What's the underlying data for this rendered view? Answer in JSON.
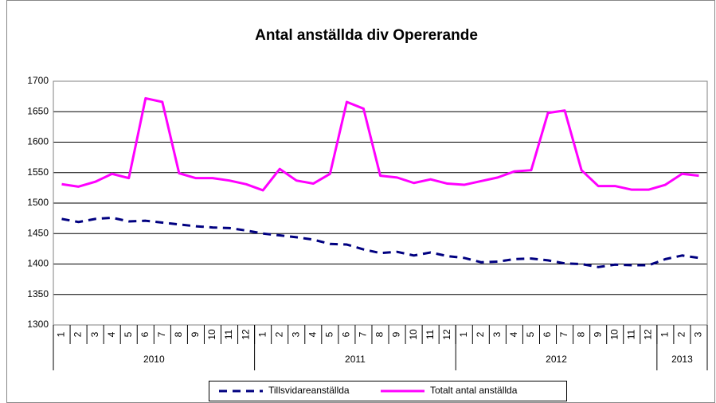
{
  "chart_data": {
    "type": "line",
    "title": "Antal anställda div Opererande",
    "categories": [
      "1",
      "2",
      "3",
      "4",
      "5",
      "6",
      "7",
      "8",
      "9",
      "10",
      "11",
      "12",
      "1",
      "2",
      "3",
      "4",
      "5",
      "6",
      "7",
      "8",
      "9",
      "10",
      "11",
      "12",
      "1",
      "2",
      "3",
      "4",
      "5",
      "6",
      "7",
      "8",
      "9",
      "10",
      "11",
      "12",
      "1",
      "2",
      "3"
    ],
    "x_groups": [
      "2010",
      "2011",
      "2012",
      "2013"
    ],
    "series": [
      {
        "name": "Tillsvidareanställda",
        "color": "#000080",
        "dashed": true,
        "values": [
          1474,
          1469,
          1474,
          1476,
          1470,
          1471,
          1468,
          1465,
          1462,
          1460,
          1459,
          1455,
          1450,
          1447,
          1444,
          1440,
          1433,
          1432,
          1424,
          1418,
          1420,
          1414,
          1419,
          1413,
          1410,
          1403,
          1404,
          1408,
          1409,
          1406,
          1401,
          1400,
          1395,
          1399,
          1398,
          1398,
          1408,
          1414,
          1410
        ]
      },
      {
        "name": "Totalt antal anställda",
        "color": "#ff00ff",
        "dashed": false,
        "values": [
          1531,
          1527,
          1535,
          1548,
          1541,
          1672,
          1666,
          1549,
          1541,
          1541,
          1537,
          1531,
          1521,
          1556,
          1537,
          1532,
          1548,
          1666,
          1655,
          1545,
          1542,
          1533,
          1539,
          1532,
          1530,
          1536,
          1542,
          1552,
          1554,
          1648,
          1652,
          1554,
          1528,
          1528,
          1522,
          1522,
          1530,
          1548,
          1545
        ]
      }
    ],
    "ylim": [
      1300,
      1700
    ],
    "yticks": [
      1300,
      1350,
      1400,
      1450,
      1500,
      1550,
      1600,
      1650,
      1700
    ],
    "grid": true,
    "legend": "bottom"
  }
}
